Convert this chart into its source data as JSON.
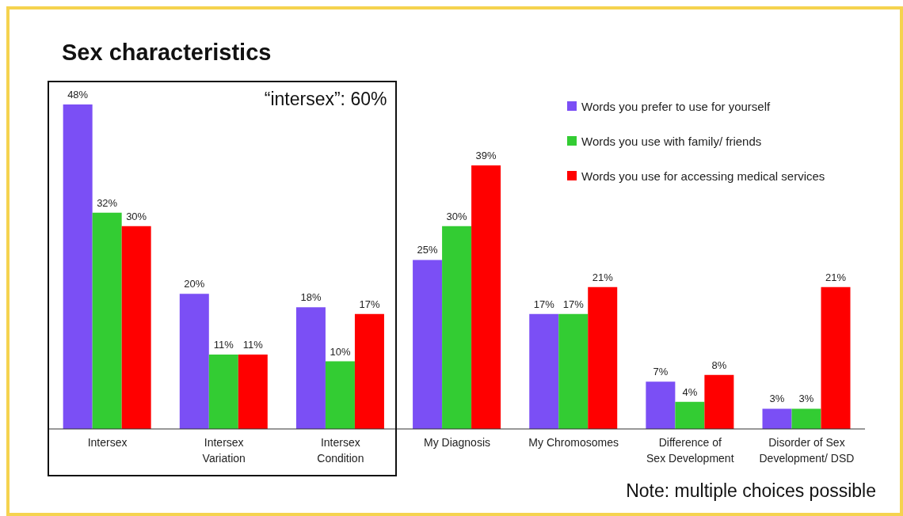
{
  "chart_data": {
    "type": "bar",
    "title": "Sex characteristics",
    "categories": [
      "Intersex",
      "Intersex Variation",
      "Intersex Condition",
      "My Diagnosis",
      "My Chromosomes",
      "Difference of Sex Development",
      "Disorder of Sex Development/ DSD"
    ],
    "series": [
      {
        "name": "Words you prefer to use for yourself",
        "color": "#7b4ff5",
        "values": [
          48,
          20,
          18,
          25,
          17,
          7,
          3
        ],
        "value_labels": [
          "48%",
          "20%",
          "18%",
          "25%",
          "17%",
          "7%",
          "3%"
        ]
      },
      {
        "name": "Words you use with family/ friends",
        "color": "#33cc33",
        "values": [
          32,
          11,
          10,
          30,
          17,
          4,
          3
        ],
        "value_labels": [
          "32%",
          "11%",
          "10%",
          "30%",
          "17%",
          "4%",
          "3%"
        ]
      },
      {
        "name": "Words you use for accessing medical services",
        "color": "#ff0000",
        "values": [
          30,
          11,
          17,
          39,
          21,
          8,
          21
        ],
        "value_labels": [
          "30%",
          "11%",
          "17%",
          "39%",
          "21%",
          "8%",
          "21%"
        ]
      }
    ],
    "annotations": [
      "“intersex”: 60%",
      "Note: multiple choices possible"
    ],
    "legend": "top right",
    "grid": false
  }
}
